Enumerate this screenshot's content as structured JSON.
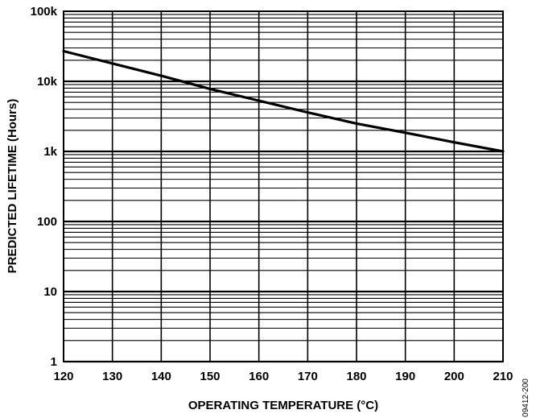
{
  "chart_data": {
    "type": "line",
    "xlabel": "OPERATING TEMPERATURE (°C)",
    "ylabel": "PREDICTED LIFETIME (Hours)",
    "xlim": [
      120,
      210
    ],
    "ylim": [
      1,
      100000
    ],
    "yscale": "log",
    "grid": true,
    "x_ticks": [
      120,
      130,
      140,
      150,
      160,
      170,
      180,
      190,
      200,
      210
    ],
    "x_tick_labels": [
      "120",
      "130",
      "140",
      "150",
      "160",
      "170",
      "180",
      "190",
      "200",
      "210"
    ],
    "y_ticks": [
      1,
      10,
      100,
      1000,
      10000,
      100000
    ],
    "y_tick_labels": [
      "1",
      "10",
      "100",
      "1k",
      "10k",
      "100k"
    ],
    "series": [
      {
        "x": [
          120,
          130,
          140,
          150,
          160,
          170,
          180,
          190,
          200,
          210
        ],
        "y": [
          27000,
          18000,
          12000,
          7800,
          5300,
          3600,
          2500,
          1850,
          1350,
          1000
        ]
      }
    ]
  },
  "figure_id": "09412-200"
}
